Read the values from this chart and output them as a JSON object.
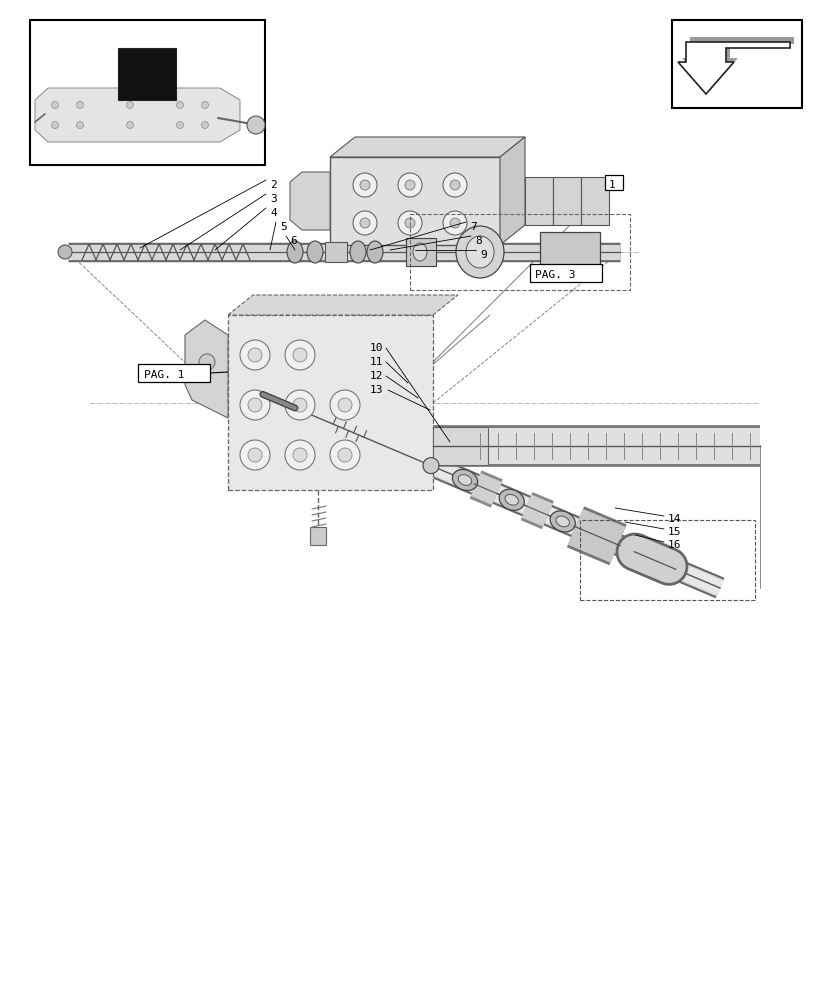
{
  "background_color": "#ffffff",
  "line_color": "#000000",
  "pag1_label": "PAG. 1",
  "pag3_label": "PAG. 3",
  "part_numbers_top": [
    "10",
    "11",
    "12",
    "13",
    "14",
    "15",
    "16"
  ],
  "part_numbers_bottom": [
    "2",
    "3",
    "4",
    "5",
    "6",
    "7",
    "8",
    "9"
  ],
  "item1_label": "1"
}
